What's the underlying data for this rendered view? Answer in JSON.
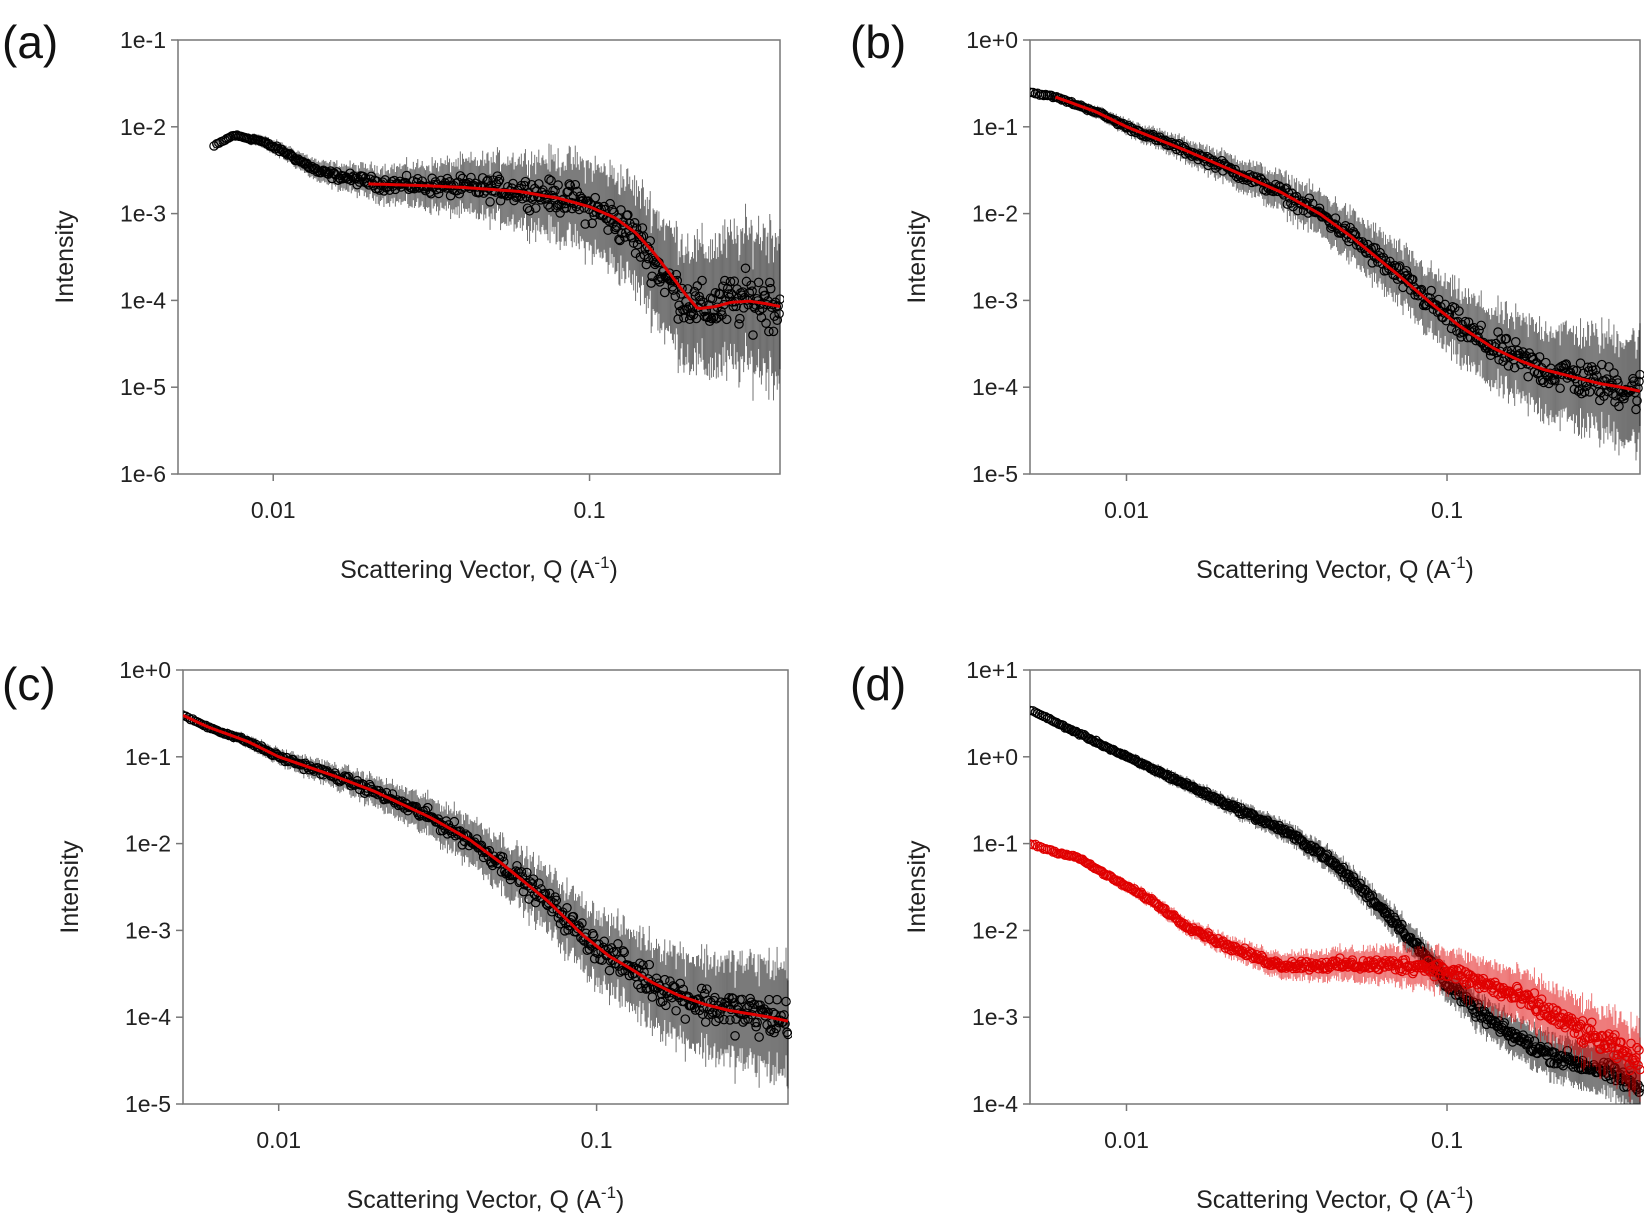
{
  "chart_data": [
    {
      "panel": "(a)",
      "type": "scatter",
      "xscale": "log",
      "yscale": "log",
      "xlim": [
        0.005,
        0.4
      ],
      "ylim": [
        1e-06,
        0.1
      ],
      "xticks": [
        {
          "value": 0.01,
          "label": "0.01"
        },
        {
          "value": 0.1,
          "label": "0.1"
        }
      ],
      "yticks": [
        {
          "value": 1e-06,
          "label": "1e-6"
        },
        {
          "value": 1e-05,
          "label": "1e-5"
        },
        {
          "value": 0.0001,
          "label": "1e-4"
        },
        {
          "value": 0.001,
          "label": "1e-3"
        },
        {
          "value": 0.01,
          "label": "1e-2"
        },
        {
          "value": 0.1,
          "label": "1e-1"
        }
      ],
      "xlabel": "Scattering Vector, Q (A",
      "xlabel_sup": "-1",
      "xlabel_end": ")",
      "ylabel": "Intensity",
      "series": [
        {
          "kind": "data",
          "color": "#000000",
          "scatter_ratio": 3.0,
          "x": [
            0.0065,
            0.0075,
            0.009,
            0.011,
            0.014,
            0.018,
            0.022,
            0.03,
            0.04,
            0.055,
            0.07,
            0.09,
            0.11,
            0.13,
            0.15,
            0.17,
            0.2,
            0.23,
            0.26,
            0.3,
            0.35,
            0.4
          ],
          "y": [
            0.006,
            0.008,
            0.007,
            0.005,
            0.003,
            0.0025,
            0.0022,
            0.0021,
            0.002,
            0.0019,
            0.0017,
            0.0014,
            0.001,
            0.0007,
            0.0004,
            0.0002,
            0.0001,
            8e-05,
            9e-05,
            0.0001,
            0.0001,
            9e-05
          ]
        },
        {
          "kind": "fit",
          "color": "#e00000",
          "x": [
            0.02,
            0.03,
            0.04,
            0.06,
            0.08,
            0.1,
            0.12,
            0.14,
            0.16,
            0.18,
            0.2,
            0.22,
            0.25,
            0.28,
            0.32,
            0.36,
            0.4
          ],
          "y": [
            0.0022,
            0.0021,
            0.002,
            0.0018,
            0.0015,
            0.0012,
            0.0009,
            0.0006,
            0.00035,
            0.0002,
            0.00012,
            8e-05,
            8.5e-05,
            9.5e-05,
            9.8e-05,
            9.2e-05,
            8.5e-05
          ]
        }
      ]
    },
    {
      "panel": "(b)",
      "type": "scatter",
      "xscale": "log",
      "yscale": "log",
      "xlim": [
        0.005,
        0.4
      ],
      "ylim": [
        1e-05,
        1.0
      ],
      "xticks": [
        {
          "value": 0.01,
          "label": "0.01"
        },
        {
          "value": 0.1,
          "label": "0.1"
        }
      ],
      "yticks": [
        {
          "value": 1e-05,
          "label": "1e-5"
        },
        {
          "value": 0.0001,
          "label": "1e-4"
        },
        {
          "value": 0.001,
          "label": "1e-3"
        },
        {
          "value": 0.01,
          "label": "1e-2"
        },
        {
          "value": 0.1,
          "label": "1e-1"
        },
        {
          "value": 1.0,
          "label": "1e+0"
        }
      ],
      "xlabel": "Scattering Vector, Q (A",
      "xlabel_sup": "-1",
      "xlabel_end": ")",
      "ylabel": "Intensity",
      "series": [
        {
          "kind": "data",
          "color": "#000000",
          "scatter_ratio": 2.2,
          "x": [
            0.005,
            0.006,
            0.008,
            0.01,
            0.015,
            0.02,
            0.03,
            0.04,
            0.05,
            0.07,
            0.09,
            0.11,
            0.14,
            0.17,
            0.2,
            0.25,
            0.3,
            0.35,
            0.4
          ],
          "y": [
            0.25,
            0.22,
            0.15,
            0.1,
            0.055,
            0.035,
            0.018,
            0.01,
            0.0055,
            0.002,
            0.0009,
            0.0005,
            0.00028,
            0.0002,
            0.00016,
            0.00013,
            0.00011,
            0.0001,
            9e-05
          ]
        },
        {
          "kind": "fit",
          "color": "#e00000",
          "x": [
            0.006,
            0.008,
            0.01,
            0.015,
            0.02,
            0.03,
            0.04,
            0.05,
            0.07,
            0.09,
            0.11,
            0.14,
            0.17,
            0.2,
            0.25,
            0.3,
            0.35,
            0.4
          ],
          "y": [
            0.22,
            0.15,
            0.1,
            0.055,
            0.035,
            0.018,
            0.01,
            0.0055,
            0.002,
            0.0009,
            0.0005,
            0.00028,
            0.0002,
            0.00016,
            0.00013,
            0.00011,
            0.0001,
            9e-05
          ]
        }
      ]
    },
    {
      "panel": "(c)",
      "type": "scatter",
      "xscale": "log",
      "yscale": "log",
      "xlim": [
        0.005,
        0.4
      ],
      "ylim": [
        1e-05,
        1.0
      ],
      "xticks": [
        {
          "value": 0.01,
          "label": "0.01"
        },
        {
          "value": 0.1,
          "label": "0.1"
        }
      ],
      "yticks": [
        {
          "value": 1e-05,
          "label": "1e-5"
        },
        {
          "value": 0.0001,
          "label": "1e-4"
        },
        {
          "value": 0.001,
          "label": "1e-3"
        },
        {
          "value": 0.01,
          "label": "1e-2"
        },
        {
          "value": 0.1,
          "label": "1e-1"
        },
        {
          "value": 1.0,
          "label": "1e+0"
        }
      ],
      "xlabel": "Scattering Vector, Q (A",
      "xlabel_sup": "-1",
      "xlabel_end": ")",
      "ylabel": "Intensity",
      "series": [
        {
          "kind": "data",
          "color": "#000000",
          "scatter_ratio": 2.3,
          "x": [
            0.005,
            0.006,
            0.008,
            0.01,
            0.015,
            0.02,
            0.03,
            0.04,
            0.05,
            0.07,
            0.09,
            0.11,
            0.13,
            0.15,
            0.18,
            0.22,
            0.26,
            0.3,
            0.35,
            0.4
          ],
          "y": [
            0.3,
            0.22,
            0.15,
            0.1,
            0.06,
            0.04,
            0.02,
            0.011,
            0.006,
            0.0022,
            0.0009,
            0.0005,
            0.00035,
            0.00025,
            0.00018,
            0.00014,
            0.00012,
            0.00011,
            0.0001,
            9e-05
          ]
        },
        {
          "kind": "fit",
          "color": "#e00000",
          "x": [
            0.005,
            0.006,
            0.008,
            0.01,
            0.015,
            0.02,
            0.03,
            0.04,
            0.05,
            0.07,
            0.09,
            0.11,
            0.13,
            0.15,
            0.18,
            0.22,
            0.26,
            0.3,
            0.35,
            0.4
          ],
          "y": [
            0.3,
            0.22,
            0.15,
            0.1,
            0.06,
            0.04,
            0.02,
            0.011,
            0.006,
            0.0022,
            0.0009,
            0.0005,
            0.00035,
            0.00025,
            0.00018,
            0.00014,
            0.00012,
            0.00011,
            0.0001,
            9e-05
          ]
        }
      ]
    },
    {
      "panel": "(d)",
      "type": "scatter",
      "xscale": "log",
      "yscale": "log",
      "xlim": [
        0.005,
        0.4
      ],
      "ylim": [
        0.0001,
        10.0
      ],
      "xticks": [
        {
          "value": 0.01,
          "label": "0.01"
        },
        {
          "value": 0.1,
          "label": "0.1"
        }
      ],
      "yticks": [
        {
          "value": 0.0001,
          "label": "1e-4"
        },
        {
          "value": 0.001,
          "label": "1e-3"
        },
        {
          "value": 0.01,
          "label": "1e-2"
        },
        {
          "value": 0.1,
          "label": "1e-1"
        },
        {
          "value": 1.0,
          "label": "1e+0"
        },
        {
          "value": 10.0,
          "label": "1e+1"
        }
      ],
      "xlabel": "Scattering Vector, Q (A",
      "xlabel_sup": "-1",
      "xlabel_end": ")",
      "ylabel": "Intensity",
      "series": [
        {
          "kind": "data",
          "color": "#000000",
          "scatter_ratio": 1.4,
          "x": [
            0.005,
            0.006,
            0.008,
            0.01,
            0.015,
            0.02,
            0.03,
            0.04,
            0.05,
            0.07,
            0.09,
            0.1,
            0.12,
            0.15,
            0.2,
            0.25,
            0.3,
            0.35,
            0.4
          ],
          "y": [
            3.5,
            2.5,
            1.5,
            1.0,
            0.5,
            0.3,
            0.15,
            0.08,
            0.04,
            0.012,
            0.004,
            0.0025,
            0.0013,
            0.0007,
            0.0004,
            0.0003,
            0.00025,
            0.0002,
            0.00015
          ]
        },
        {
          "kind": "data",
          "color": "#e00000",
          "scatter_ratio": 1.6,
          "x": [
            0.005,
            0.006,
            0.007,
            0.009,
            0.012,
            0.015,
            0.02,
            0.025,
            0.03,
            0.04,
            0.05,
            0.07,
            0.09,
            0.11,
            0.14,
            0.18,
            0.22,
            0.28,
            0.35,
            0.4
          ],
          "y": [
            0.1,
            0.08,
            0.07,
            0.04,
            0.022,
            0.012,
            0.007,
            0.005,
            0.004,
            0.004,
            0.004,
            0.004,
            0.0038,
            0.003,
            0.0022,
            0.0015,
            0.001,
            0.0006,
            0.0004,
            0.0003
          ]
        }
      ]
    }
  ]
}
